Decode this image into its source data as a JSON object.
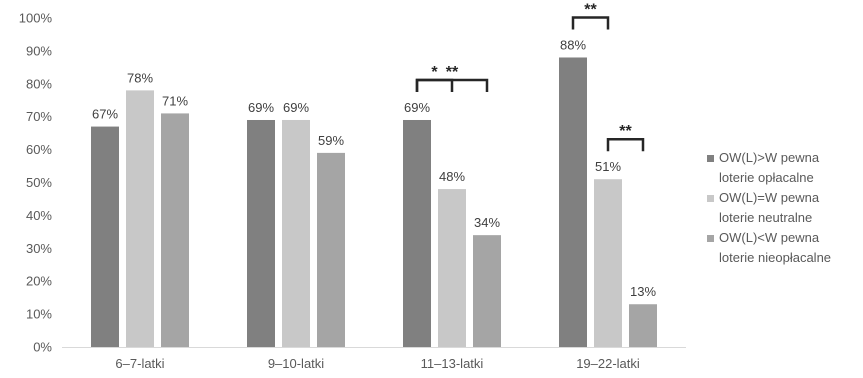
{
  "chart_data": {
    "type": "bar",
    "categories": [
      "6–7-latki",
      "9–10-latki",
      "11–13-latki",
      "19–22-latki"
    ],
    "series": [
      {
        "name": "OW(L)>W pewna loterie opłacalne",
        "values": [
          67,
          69,
          69,
          88
        ],
        "labels": [
          "67%",
          "69%",
          "69%",
          "88%"
        ],
        "color": "#808080"
      },
      {
        "name": "OW(L)=W pewna loterie neutralne",
        "values": [
          78,
          69,
          48,
          51
        ],
        "labels": [
          "78%",
          "69%",
          "48%",
          "51%"
        ],
        "color": "#c8c8c8"
      },
      {
        "name": "OW(L)<W pewna loterie nieopłacalne",
        "values": [
          71,
          59,
          34,
          13
        ],
        "labels": [
          "71%",
          "59%",
          "34%",
          "13%"
        ],
        "color": "#a5a5a5"
      }
    ],
    "ylim": [
      0,
      100
    ],
    "yticks": [
      "0%",
      "10%",
      "20%",
      "30%",
      "40%",
      "50%",
      "60%",
      "70%",
      "80%",
      "90%",
      "100%"
    ],
    "legend": {
      "position": "right",
      "entries": [
        {
          "line1": "OW(L)>W pewna",
          "line2": "loterie opłacalne"
        },
        {
          "line1": "OW(L)=W pewna",
          "line2": "loterie neutralne"
        },
        {
          "line1": "OW(L)<W pewna",
          "line2": "loterie nieopłacalne"
        }
      ]
    },
    "significance": [
      {
        "category": 2,
        "from_series": 0,
        "to_series": 2,
        "label": "**"
      },
      {
        "category": 2,
        "from_series": 0,
        "to_series": 1,
        "label": "*"
      },
      {
        "category": 3,
        "from_series": 0,
        "to_series": 1,
        "label": "**"
      },
      {
        "category": 3,
        "from_series": 1,
        "to_series": 2,
        "label": "**"
      }
    ]
  }
}
